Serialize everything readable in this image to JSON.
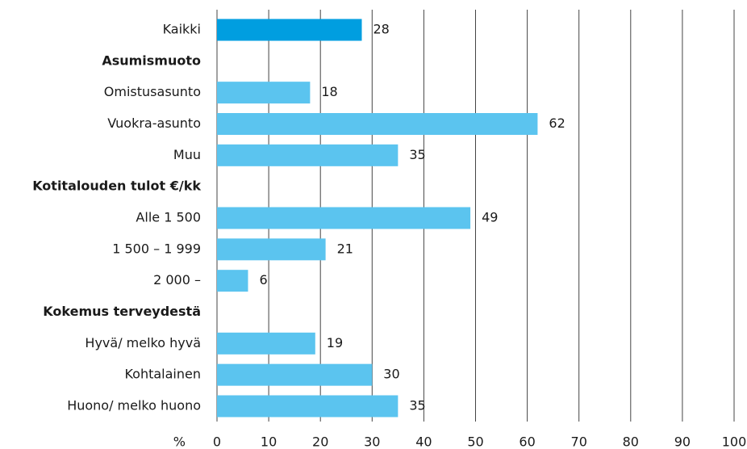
{
  "chart_data": {
    "type": "barh",
    "categories": [
      "Kaikki",
      "Asumismuoto",
      "Omistusasunto",
      "Vuokra-asunto",
      "Muu",
      "Kotitalouden tulot €/kk",
      "Alle 1 500",
      "1 500 – 1 999",
      "2 000 –",
      "Kokemus terveydestä",
      "Hyvä/ melko hyvä",
      "Kohtalainen",
      "Huono/ melko huono"
    ],
    "values": [
      28,
      null,
      18,
      62,
      35,
      null,
      49,
      21,
      6,
      null,
      19,
      30,
      35
    ],
    "colors": [
      "#009ee0",
      null,
      "#5bc4ef",
      "#5bc4ef",
      "#5bc4ef",
      null,
      "#5bc4ef",
      "#5bc4ef",
      "#5bc4ef",
      null,
      "#5bc4ef",
      "#5bc4ef",
      "#5bc4ef"
    ],
    "xlabel": "%",
    "xlim": [
      0,
      100
    ],
    "xticks": [
      0,
      10,
      20,
      30,
      40,
      50,
      60,
      70,
      80,
      90,
      100
    ],
    "grid": true
  }
}
